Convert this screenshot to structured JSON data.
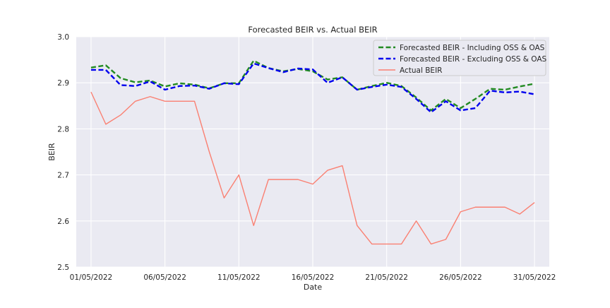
{
  "chart_data": {
    "type": "line",
    "title": "Forecasted BEIR vs. Actual BEIR",
    "xlabel": "Date",
    "ylabel": "BEIR",
    "ylim": [
      2.5,
      3.0
    ],
    "yticks": [
      "2.5",
      "2.6",
      "2.7",
      "2.8",
      "2.9",
      "3.0"
    ],
    "xtick_labels": [
      "01/05/2022",
      "06/05/2022",
      "11/05/2022",
      "16/05/2022",
      "21/05/2022",
      "26/05/2022",
      "31/05/2022"
    ],
    "x": [
      1,
      2,
      3,
      4,
      5,
      6,
      7,
      8,
      9,
      10,
      11,
      12,
      13,
      14,
      15,
      16,
      17,
      18,
      19,
      20,
      21,
      22,
      23,
      24,
      25,
      26,
      27,
      28,
      29,
      30,
      31
    ],
    "grid": true,
    "legend_position": "top-right",
    "series": [
      {
        "name": "Forecasted BEIR - Including OSS & OAS",
        "color": "#228B22",
        "style": "dashed",
        "values": [
          2.933,
          2.938,
          2.91,
          2.901,
          2.905,
          2.892,
          2.899,
          2.896,
          2.888,
          2.899,
          2.899,
          2.948,
          2.932,
          2.925,
          2.93,
          2.925,
          2.907,
          2.912,
          2.885,
          2.893,
          2.9,
          2.893,
          2.868,
          2.84,
          2.865,
          2.845,
          2.865,
          2.887,
          2.885,
          2.892,
          2.898
        ]
      },
      {
        "name": "Forecasted BEIR - Excluding OSS & OAS",
        "color": "#0000EE",
        "style": "dashed",
        "values": [
          2.928,
          2.928,
          2.895,
          2.893,
          2.903,
          2.885,
          2.893,
          2.894,
          2.887,
          2.899,
          2.897,
          2.942,
          2.932,
          2.923,
          2.931,
          2.929,
          2.9,
          2.912,
          2.885,
          2.891,
          2.896,
          2.891,
          2.865,
          2.836,
          2.86,
          2.84,
          2.845,
          2.883,
          2.879,
          2.881,
          2.875
        ]
      },
      {
        "name": "Actual BEIR",
        "color": "#FA8072",
        "style": "solid",
        "values": [
          2.88,
          2.81,
          2.83,
          2.86,
          2.87,
          2.86,
          2.86,
          2.86,
          2.75,
          2.65,
          2.7,
          2.59,
          2.69,
          2.69,
          2.69,
          2.68,
          2.71,
          2.72,
          2.59,
          2.55,
          2.55,
          2.55,
          2.6,
          2.55,
          2.56,
          2.62,
          2.63,
          2.63,
          2.63,
          2.615,
          2.64
        ]
      }
    ]
  }
}
